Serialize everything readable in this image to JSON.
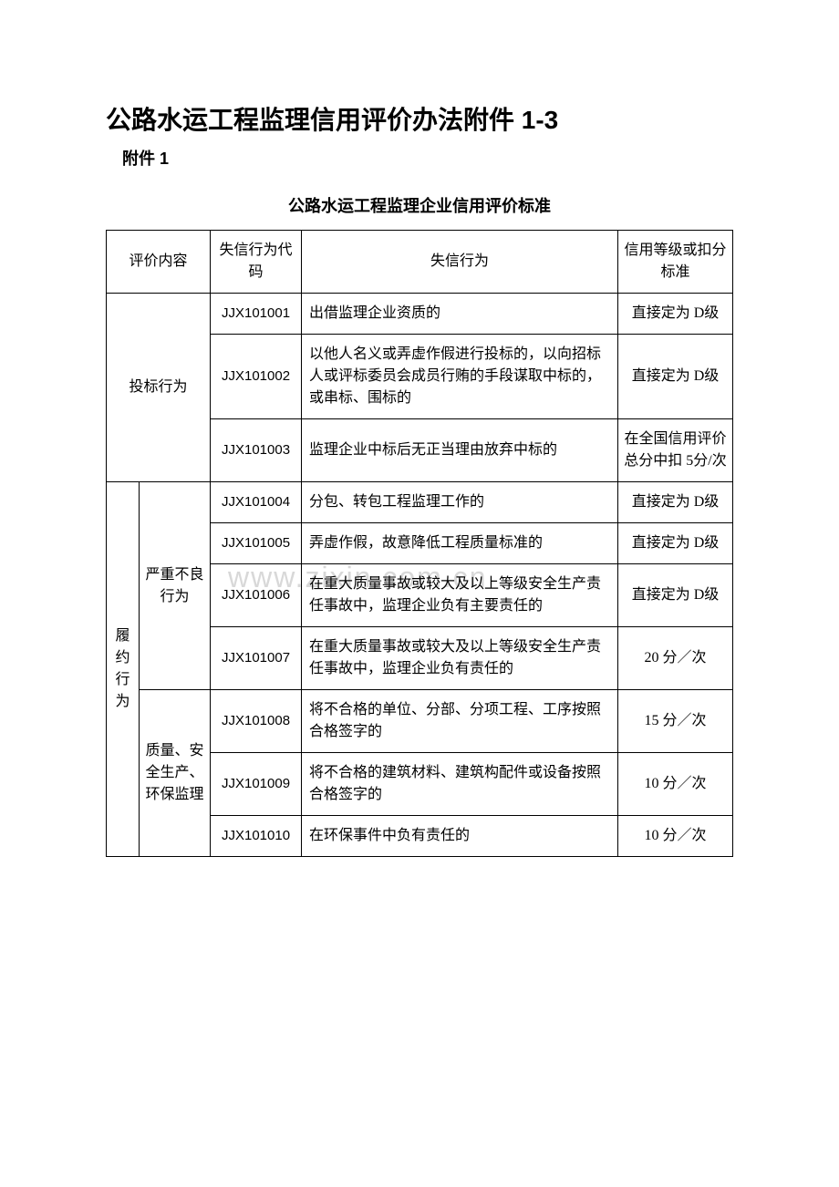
{
  "document": {
    "main_title": "公路水运工程监理信用评价办法附件 1-3",
    "attachment_label": "附件 1",
    "subtitle": "公路水运工程监理企业信用评价标准",
    "watermark": "www.zixin.com.cn"
  },
  "table": {
    "headers": {
      "col1": "评价内容",
      "col2": "失信行为代码",
      "col3": "失信行为",
      "col4": "信用等级或扣分标准"
    },
    "group1": {
      "label": "投标行为",
      "rows": [
        {
          "code": "JJX101001",
          "desc": "出借监理企业资质的",
          "penalty": "直接定为 D级"
        },
        {
          "code": "JJX101002",
          "desc": "以他人名义或弄虚作假进行投标的，以向招标人或评标委员会成员行贿的手段谋取中标的，或串标、围标的",
          "penalty": "直接定为 D级"
        },
        {
          "code": "JJX101003",
          "desc": "监理企业中标后无正当理由放弃中标的",
          "penalty": "在全国信用评价总分中扣 5分/次"
        }
      ]
    },
    "group2": {
      "label": "履约行为",
      "sub1": {
        "label": "严重不良行为",
        "rows": [
          {
            "code": "JJX101004",
            "desc": "分包、转包工程监理工作的",
            "penalty": "直接定为 D级"
          },
          {
            "code": "JJX101005",
            "desc": "弄虚作假，故意降低工程质量标准的",
            "penalty": "直接定为 D级"
          },
          {
            "code": "JJX101006",
            "desc": "在重大质量事故或较大及以上等级安全生产责任事故中，监理企业负有主要责任的",
            "penalty": "直接定为 D级"
          },
          {
            "code": "JJX101007",
            "desc": "在重大质量事故或较大及以上等级安全生产责任事故中，监理企业负有责任的",
            "penalty": "20 分／次"
          }
        ]
      },
      "sub2": {
        "label": "质量、安全生产、环保监理",
        "rows": [
          {
            "code": "JJX101008",
            "desc": "将不合格的单位、分部、分项工程、工序按照合格签字的",
            "penalty": "15 分／次"
          },
          {
            "code": "JJX101009",
            "desc": "将不合格的建筑材料、建筑构配件或设备按照合格签字的",
            "penalty": "10 分／次"
          },
          {
            "code": "JJX101010",
            "desc": "在环保事件中负有责任的",
            "penalty": "10 分／次"
          }
        ]
      }
    }
  },
  "styling": {
    "background_color": "#ffffff",
    "border_color": "#000000",
    "text_color": "#000000",
    "watermark_color": "#d8d8d8",
    "title_fontsize": 28,
    "subtitle_fontsize": 18,
    "cell_fontsize": 16,
    "font_family_heading": "SimHei",
    "font_family_body": "SimSun"
  }
}
